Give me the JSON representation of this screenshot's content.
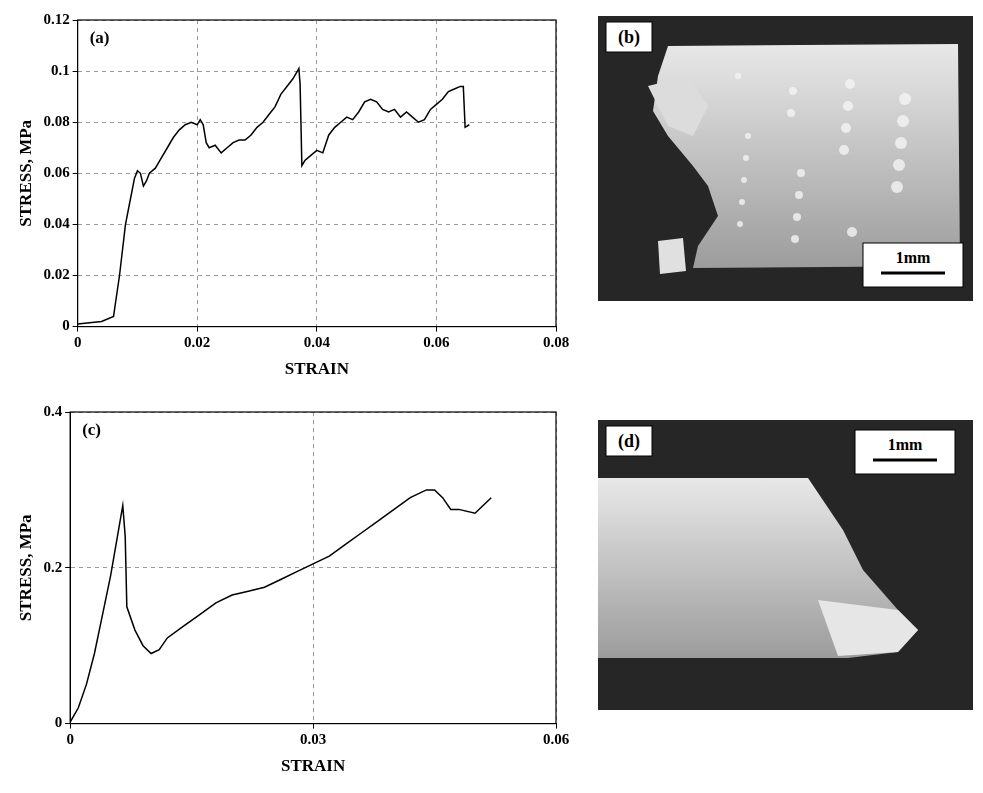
{
  "chart_data": [
    {
      "type": "line",
      "title": "(a)",
      "x_label": "STRAIN",
      "y_label": "STRESS, MPa",
      "color": "#000000",
      "grid": true,
      "x": [
        0,
        0.004,
        0.006,
        0.007,
        0.008,
        0.009,
        0.0095,
        0.01,
        0.0105,
        0.011,
        0.0115,
        0.012,
        0.013,
        0.014,
        0.015,
        0.016,
        0.017,
        0.018,
        0.019,
        0.02,
        0.0205,
        0.021,
        0.0215,
        0.022,
        0.023,
        0.024,
        0.025,
        0.026,
        0.027,
        0.028,
        0.029,
        0.03,
        0.031,
        0.032,
        0.033,
        0.034,
        0.035,
        0.036,
        0.037,
        0.0372,
        0.0375,
        0.038,
        0.039,
        0.04,
        0.041,
        0.042,
        0.043,
        0.044,
        0.045,
        0.046,
        0.047,
        0.048,
        0.049,
        0.05,
        0.051,
        0.052,
        0.053,
        0.054,
        0.055,
        0.056,
        0.057,
        0.058,
        0.059,
        0.06,
        0.061,
        0.062,
        0.063,
        0.064,
        0.0645,
        0.0648,
        0.0655
      ],
      "values": [
        0.001,
        0.002,
        0.004,
        0.02,
        0.04,
        0.052,
        0.058,
        0.061,
        0.06,
        0.055,
        0.057,
        0.06,
        0.062,
        0.066,
        0.07,
        0.074,
        0.077,
        0.079,
        0.08,
        0.079,
        0.081,
        0.079,
        0.072,
        0.07,
        0.071,
        0.068,
        0.07,
        0.072,
        0.073,
        0.073,
        0.075,
        0.078,
        0.08,
        0.083,
        0.086,
        0.091,
        0.094,
        0.097,
        0.101,
        0.095,
        0.063,
        0.065,
        0.067,
        0.069,
        0.068,
        0.075,
        0.078,
        0.08,
        0.082,
        0.081,
        0.084,
        0.088,
        0.089,
        0.088,
        0.085,
        0.084,
        0.085,
        0.082,
        0.084,
        0.082,
        0.08,
        0.081,
        0.085,
        0.087,
        0.089,
        0.092,
        0.093,
        0.094,
        0.094,
        0.078,
        0.079
      ],
      "xlim": [
        0,
        0.08
      ],
      "xticks": [
        0,
        0.02,
        0.04,
        0.06,
        0.08
      ],
      "ylim": [
        0,
        0.12
      ],
      "yticks": [
        0,
        0.02,
        0.04,
        0.06,
        0.08,
        0.1,
        0.12
      ]
    },
    {
      "type": "line",
      "title": "(c)",
      "x_label": "STRAIN",
      "y_label": "STRESS, MPa",
      "color": "#000000",
      "grid": true,
      "x": [
        0,
        0.001,
        0.002,
        0.003,
        0.004,
        0.005,
        0.006,
        0.0065,
        0.0068,
        0.007,
        0.008,
        0.009,
        0.01,
        0.011,
        0.012,
        0.014,
        0.016,
        0.018,
        0.02,
        0.022,
        0.024,
        0.026,
        0.028,
        0.03,
        0.032,
        0.034,
        0.036,
        0.038,
        0.04,
        0.042,
        0.044,
        0.045,
        0.046,
        0.047,
        0.048,
        0.05,
        0.051,
        0.052
      ],
      "values": [
        0.002,
        0.02,
        0.05,
        0.09,
        0.14,
        0.19,
        0.25,
        0.28,
        0.24,
        0.15,
        0.12,
        0.1,
        0.09,
        0.095,
        0.11,
        0.125,
        0.14,
        0.155,
        0.165,
        0.17,
        0.175,
        0.185,
        0.195,
        0.205,
        0.215,
        0.23,
        0.245,
        0.26,
        0.275,
        0.29,
        0.3,
        0.3,
        0.29,
        0.275,
        0.275,
        0.27,
        0.28,
        0.29
      ],
      "xlim": [
        0,
        0.06
      ],
      "xticks": [
        0,
        0.03,
        0.06
      ],
      "ylim": [
        0,
        0.4
      ],
      "yticks": [
        0,
        0.2,
        0.4
      ]
    }
  ],
  "images": [
    {
      "label": "(b)",
      "scale_bar": "1mm"
    },
    {
      "label": "(d)",
      "scale_bar": "1mm"
    }
  ]
}
